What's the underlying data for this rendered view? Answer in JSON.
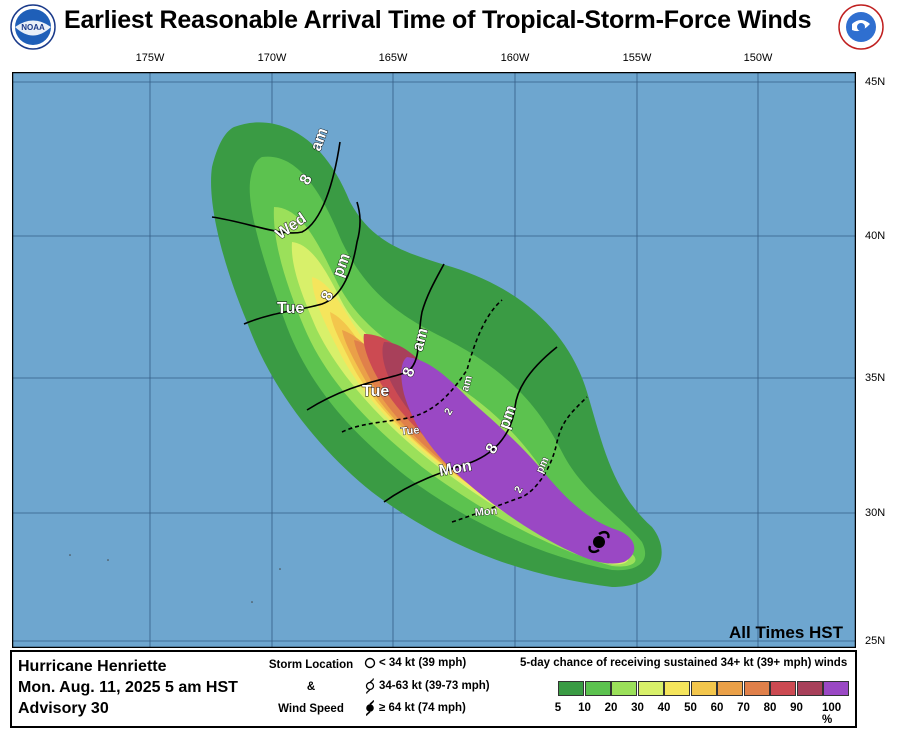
{
  "header": {
    "title": "Earliest Reasonable Arrival Time of Tropical-Storm-Force Winds",
    "left_logo": "noaa-logo",
    "right_logo": "nws-logo"
  },
  "map": {
    "longitude_labels": [
      "175W",
      "170W",
      "165W",
      "160W",
      "155W",
      "150W"
    ],
    "latitude_labels": [
      "45N",
      "40N",
      "35N",
      "30N",
      "25N"
    ],
    "ocean_color": "#6ea6cf",
    "note": "All Times HST",
    "time_labels_major": [
      "Wed",
      "8",
      "am",
      "Tue",
      "8",
      "pm",
      "Tue",
      "8",
      "am",
      "Mon",
      "8",
      "pm"
    ],
    "time_labels_minor": [
      "am",
      "2",
      "Tue",
      "2",
      "pm",
      "Mon"
    ]
  },
  "legend": {
    "storm_name": "Hurricane Henriette",
    "advisory_time": "Mon. Aug. 11, 2025  5 am HST",
    "advisory_number": "Advisory 30",
    "storm_location_label": "Storm Location",
    "ampersand": "&",
    "wind_speed_label": "Wind Speed",
    "wind_rows": [
      "< 34 kt (39 mph)",
      "34-63 kt (39-73 mph)",
      "≥ 64 kt (74 mph)"
    ],
    "probability_title": "5-day chance of receiving sustained 34+ kt (39+ mph) winds",
    "probability_ticks": [
      "5",
      "10",
      "20",
      "30",
      "40",
      "50",
      "60",
      "70",
      "80",
      "90",
      "100 %"
    ],
    "probability_colors": [
      "#3a9b44",
      "#5cc24f",
      "#9be05a",
      "#d8f06a",
      "#f5e55c",
      "#f3c64c",
      "#eaa048",
      "#e0804a",
      "#cc4a52",
      "#a8405a",
      "#9a48c4"
    ]
  }
}
